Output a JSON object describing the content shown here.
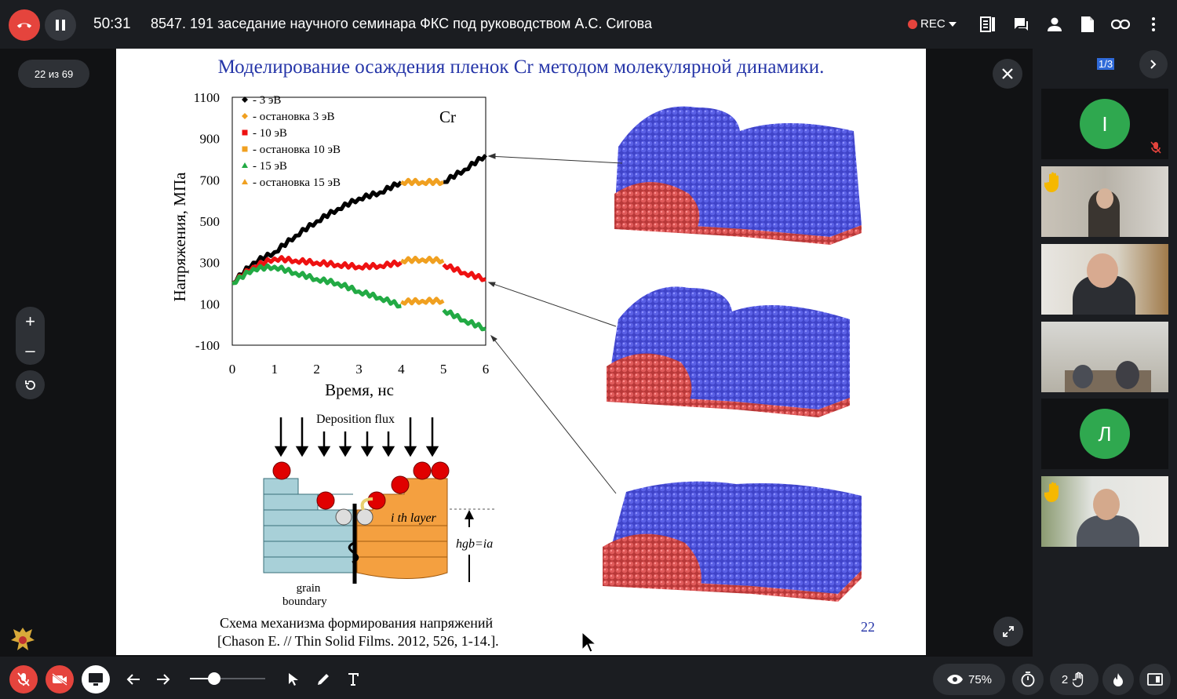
{
  "header": {
    "timer": "50:31",
    "title": "8547. 191 заседание научного семинара ФКС под руководством А.С. Сигова",
    "rec_label": "REC"
  },
  "stage": {
    "slide_counter": "22 из 69",
    "zoom_in": "+",
    "zoom_out": "–"
  },
  "slide": {
    "title": "Моделирование осаждения пленок Cr методом молекулярной динамики.",
    "chart_data": {
      "type": "line",
      "ylabel": "Напряжения, МПа",
      "xlabel": "Время, нс",
      "annotation": "Cr",
      "xlim": [
        0,
        6
      ],
      "ylim": [
        -100,
        1100
      ],
      "x_ticks": [
        "0",
        "1",
        "2",
        "3",
        "4",
        "5",
        "6"
      ],
      "y_ticks": [
        "1100",
        "900",
        "700",
        "500",
        "300",
        "100",
        "-100"
      ],
      "legend": [
        "- 3 эВ",
        "- остановка 3 эВ",
        "- 10 эВ",
        "- остановка 10 эВ",
        "- 15 эВ",
        "- остановка 15 эВ"
      ],
      "series": [
        {
          "name": "- 3 эВ",
          "color": "#000000",
          "x": [
            0,
            0.5,
            1,
            1.5,
            2,
            2.5,
            3,
            3.5,
            4
          ],
          "y": [
            200,
            300,
            350,
            430,
            500,
            560,
            610,
            640,
            690
          ]
        },
        {
          "name": "- остановка 3 эВ",
          "color": "#f0a020",
          "x": [
            4,
            4.5,
            5
          ],
          "y": [
            690,
            690,
            690
          ]
        },
        {
          "name": "- 3 эВ",
          "color": "#000000",
          "x": [
            5,
            5.5,
            6
          ],
          "y": [
            690,
            750,
            820
          ]
        },
        {
          "name": "- 10 эВ",
          "color": "#ee1111",
          "x": [
            0,
            0.5,
            1,
            1.5,
            2,
            2.5,
            3,
            3.5,
            4
          ],
          "y": [
            200,
            280,
            320,
            310,
            300,
            290,
            280,
            285,
            300
          ]
        },
        {
          "name": "- остановка 10 эВ",
          "color": "#f0a020",
          "x": [
            4,
            4.5,
            5
          ],
          "y": [
            310,
            315,
            310
          ]
        },
        {
          "name": "- 10 эВ",
          "color": "#ee1111",
          "x": [
            5,
            5.5,
            6
          ],
          "y": [
            290,
            250,
            220
          ]
        },
        {
          "name": "- 15 эВ",
          "color": "#22aa44",
          "x": [
            0,
            0.5,
            1,
            1.5,
            2,
            2.5,
            3,
            3.5,
            4
          ],
          "y": [
            200,
            270,
            280,
            250,
            220,
            200,
            160,
            130,
            90
          ]
        },
        {
          "name": "- остановка 15 эВ",
          "color": "#f0a020",
          "x": [
            4,
            4.5,
            5
          ],
          "y": [
            110,
            115,
            115
          ]
        },
        {
          "name": "- 15 эВ",
          "color": "#22aa44",
          "x": [
            5,
            5.5,
            6
          ],
          "y": [
            70,
            20,
            -20
          ]
        }
      ]
    },
    "schema": {
      "flux_label": "Deposition flux",
      "layer_label": "i th layer",
      "height_label": "hgb=ia",
      "grain_label": "grain",
      "boundary_label": "boundary",
      "caption_line1": "Схема механизма формирования напряжений",
      "caption_line2": "[Chason E. // Thin Solid Films. 2012, 526, 1-14.]."
    },
    "page_number": "22"
  },
  "sidebar": {
    "page_indicator": "1/3",
    "tiles": [
      {
        "type": "avatar",
        "letter": "I"
      },
      {
        "type": "video",
        "hand": true
      },
      {
        "type": "video",
        "hand": false
      },
      {
        "type": "video",
        "hand": false
      },
      {
        "type": "avatar",
        "letter": "Л"
      },
      {
        "type": "video",
        "hand": true
      }
    ]
  },
  "footer": {
    "viewers_percent": "75%",
    "hands_count": "2"
  },
  "colors": {
    "hangup": "#e5443d",
    "avatar_green": "#2fa84f",
    "slide_title": "#2535a8",
    "atom_blue": "#4a4fd0",
    "atom_red": "#e05050"
  }
}
